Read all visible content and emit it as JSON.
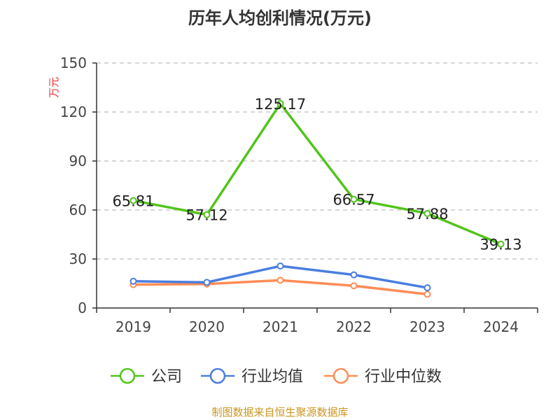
{
  "chart_data": {
    "type": "line",
    "title": "历年人均创利情况(万元)",
    "ylabel": "万元",
    "xlabel": "",
    "ylim": [
      0,
      150
    ],
    "yticks": [
      0,
      30,
      60,
      90,
      120,
      150
    ],
    "grid": true,
    "legend_position": "bottom",
    "categories": [
      "2019",
      "2020",
      "2021",
      "2022",
      "2023",
      "2024"
    ],
    "series": [
      {
        "name": "公司",
        "color": "#52c41a",
        "values": [
          65.81,
          57.12,
          125.17,
          66.57,
          57.88,
          39.13
        ],
        "labels": [
          "65.81",
          "57.12",
          "125.17",
          "66.57",
          "57.88",
          "39.13"
        ]
      },
      {
        "name": "行业均值",
        "color": "#4a7ee0",
        "values": [
          16.4,
          15.7,
          25.7,
          20.3,
          12.4,
          null
        ]
      },
      {
        "name": "行业中位数",
        "color": "#ff8c55",
        "values": [
          14.3,
          14.7,
          17.0,
          13.6,
          8.4,
          null
        ]
      }
    ],
    "source": "制图数据来自恒生聚源数据库"
  }
}
